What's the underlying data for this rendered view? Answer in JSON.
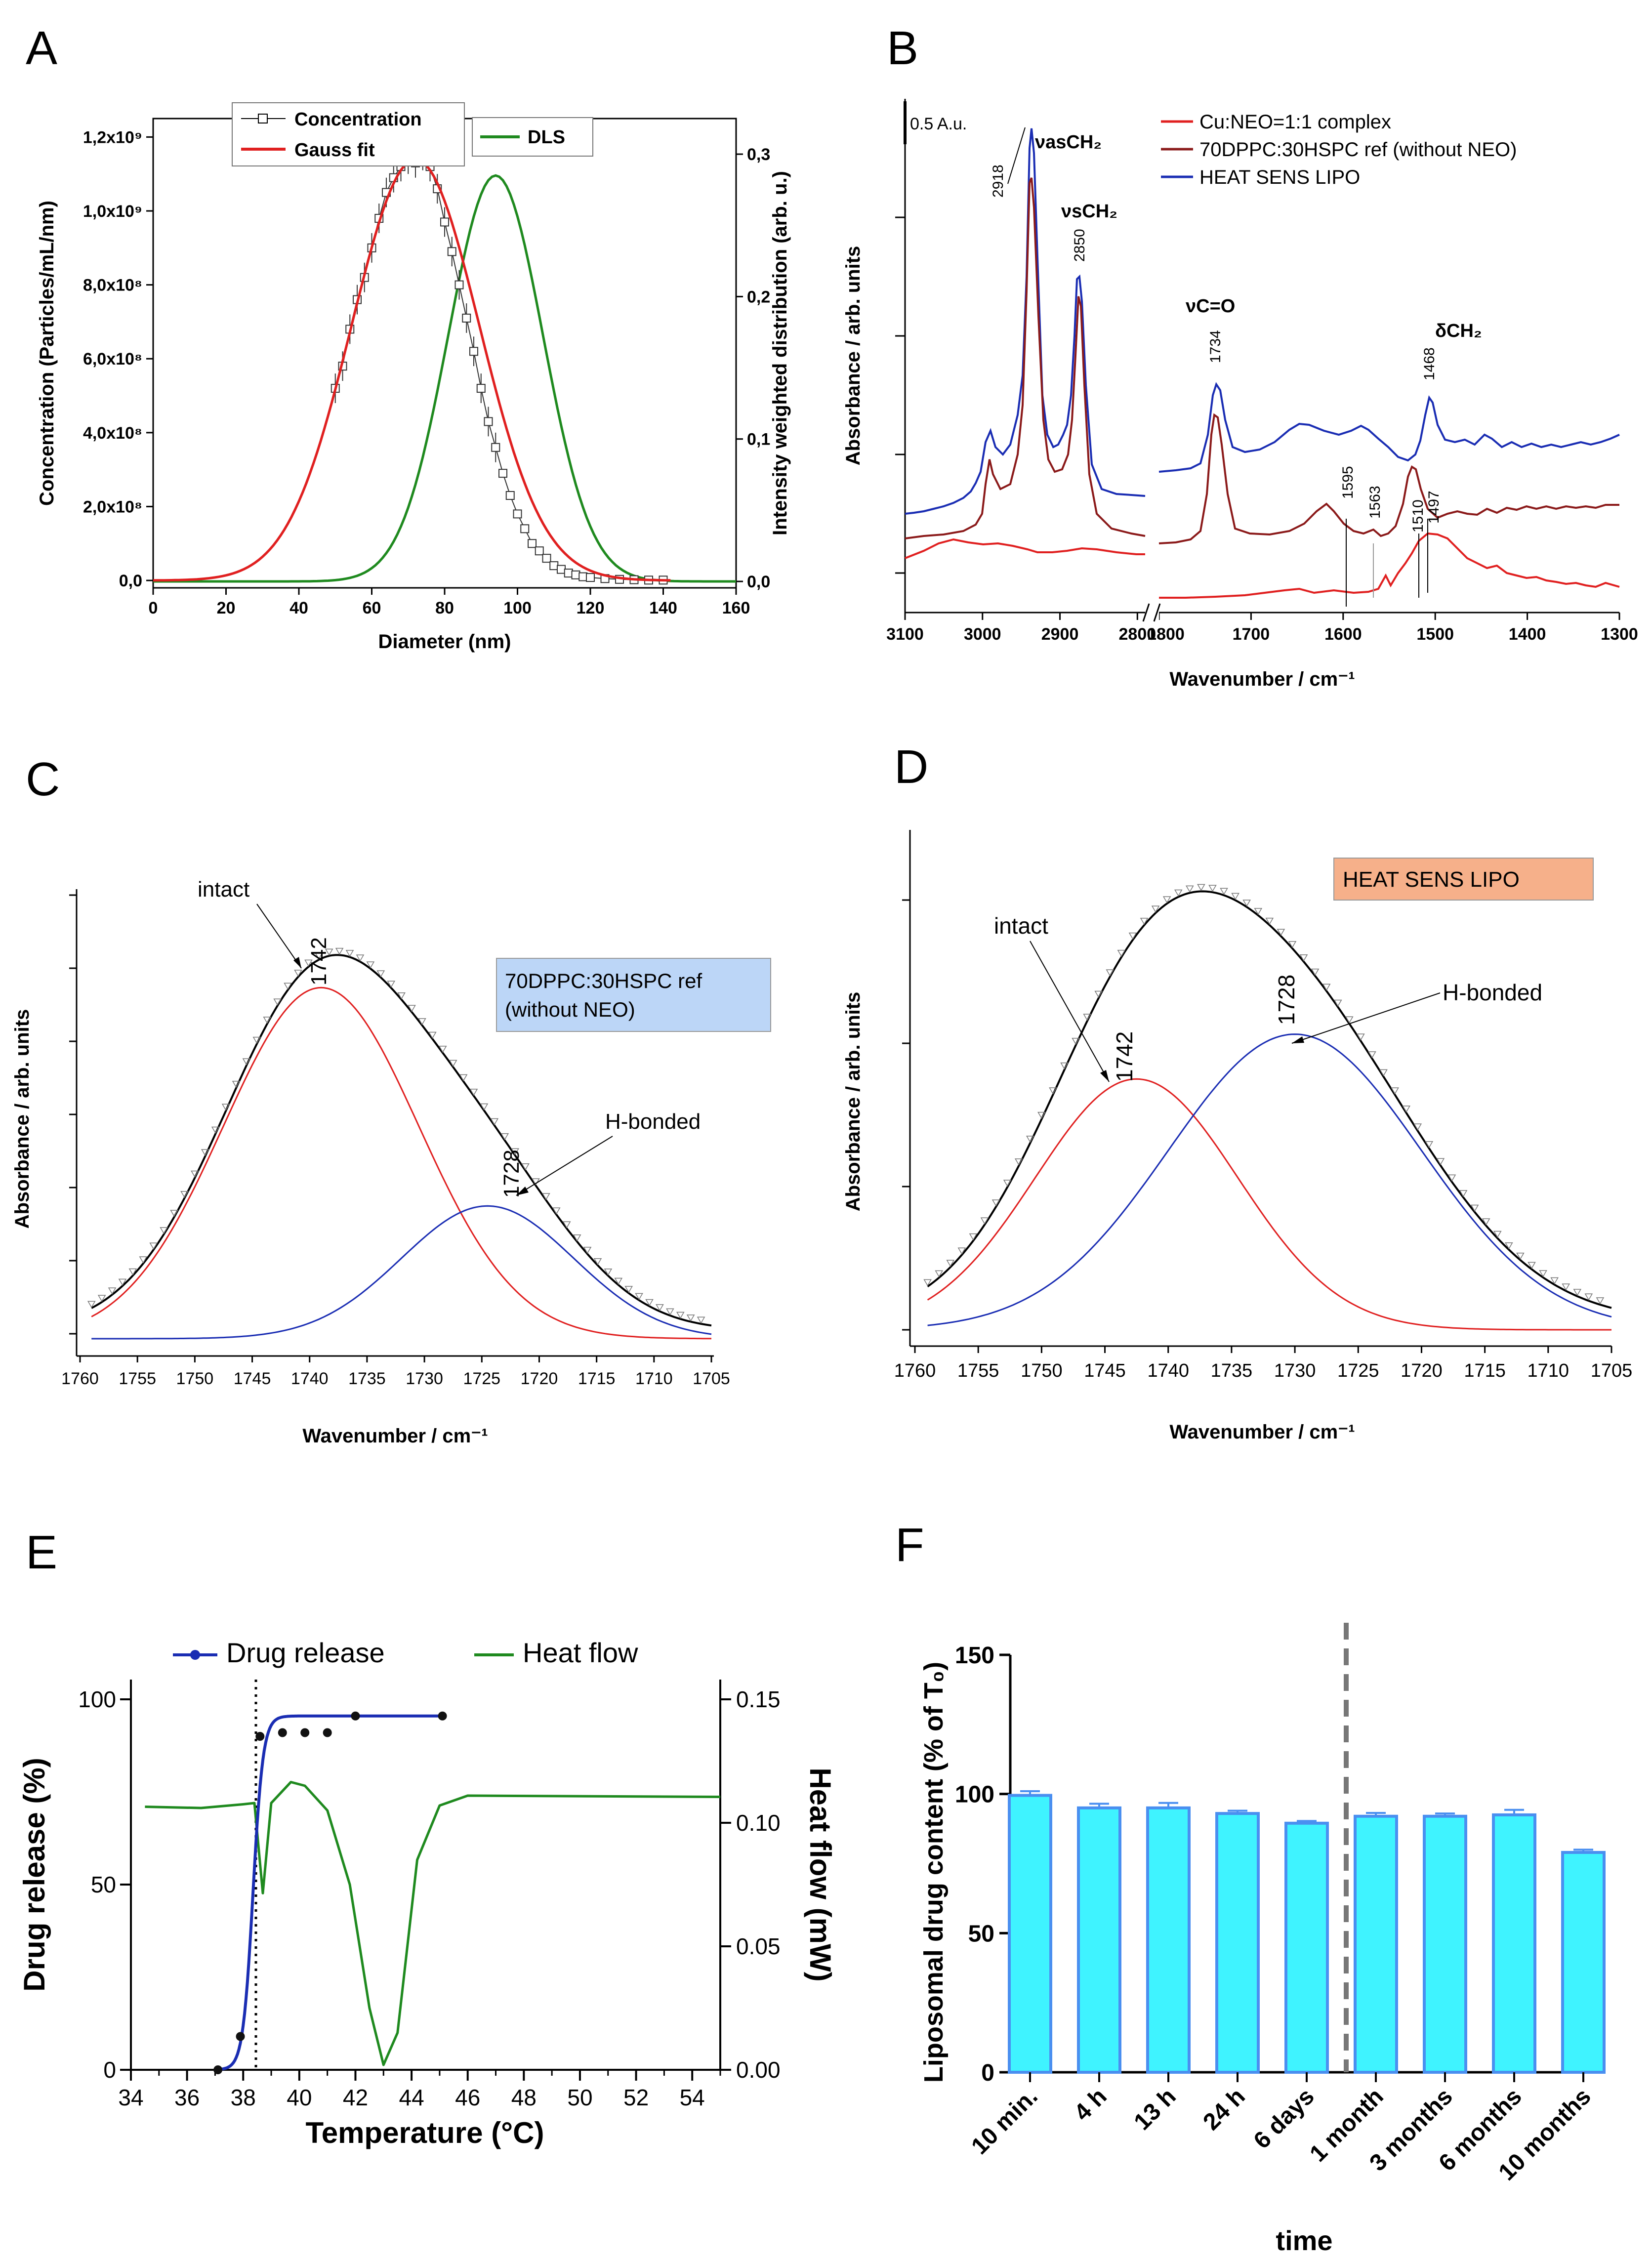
{
  "panels": {
    "A": {
      "label": "A",
      "xlabel": "Diameter (nm)",
      "ylabel": "Concentration (Particles/mL/nm)",
      "y2label": "Intensity weighted distribution (arb. u.)",
      "xticks": [
        "0",
        "20",
        "40",
        "60",
        "80",
        "100",
        "120",
        "140",
        "160"
      ],
      "yticks": [
        "0,0",
        "2,0x10⁸",
        "4,0x10⁸",
        "6,0x10⁸",
        "8,0x10⁸",
        "1,0x10⁹",
        "1,2x10⁹"
      ],
      "y2ticks": [
        "0,0",
        "0,1",
        "0,2",
        "0,3"
      ],
      "legend": {
        "concentration": "Concentration",
        "gauss": "Gauss fit",
        "dls": "DLS"
      }
    },
    "B": {
      "label": "B",
      "xlabel": "Wavenumber / cm⁻¹",
      "ylabel": "Absorbance / arb. units",
      "xticks_left": [
        "3100",
        "3000",
        "2900",
        "2800"
      ],
      "xticks_right": [
        "1800",
        "1700",
        "1600",
        "1500",
        "1400",
        "1300"
      ],
      "scale_label": "0.5 A.u.",
      "legend": {
        "cu": "Cu:NEO=1:1 complex",
        "ref": "70DPPC:30HSPC ref (without NEO)",
        "lipo": "HEAT SENS LIPO"
      },
      "peaks": [
        "2918",
        "2850",
        "1734",
        "1468",
        "1595",
        "1563",
        "1510",
        "1497"
      ],
      "band_labels": {
        "vas": "νasCH₂",
        "vs": "νsCH₂",
        "vco": "νC=O",
        "dch": "δCH₂"
      }
    },
    "C": {
      "label": "C",
      "xlabel": "Wavenumber / cm⁻¹",
      "ylabel": "Absorbance / arb. units",
      "xticks": [
        "1760",
        "1755",
        "1750",
        "1745",
        "1740",
        "1735",
        "1730",
        "1725",
        "1720",
        "1715",
        "1710",
        "1705"
      ],
      "box_line1": "70DPPC:30HSPC ref",
      "box_line2": "(without NEO)",
      "intact": "intact",
      "hbonded": "H-bonded",
      "peak1": "1742",
      "peak2": "1728"
    },
    "D": {
      "label": "D",
      "xlabel": "Wavenumber / cm⁻¹",
      "ylabel": "Absorbance / arb. units",
      "xticks": [
        "1760",
        "1755",
        "1750",
        "1745",
        "1740",
        "1735",
        "1730",
        "1725",
        "1720",
        "1715",
        "1710",
        "1705"
      ],
      "box": "HEAT SENS LIPO",
      "intact": "intact",
      "hbonded": "H-bonded",
      "peak1": "1742",
      "peak2": "1728"
    },
    "E": {
      "label": "E",
      "xlabel": "Temperature (°C)",
      "ylabel": "Drug release (%)",
      "y2label": "Heat flow (mW)",
      "xticks": [
        "34",
        "36",
        "38",
        "40",
        "42",
        "44",
        "46",
        "48",
        "50",
        "52",
        "54"
      ],
      "yticks": [
        "0",
        "50",
        "100"
      ],
      "y2ticks": [
        "0.00",
        "0.05",
        "0.10",
        "0.15"
      ],
      "legend": {
        "release": "Drug release",
        "heat": "Heat flow"
      }
    },
    "F": {
      "label": "F",
      "xlabel": "time",
      "ylabel": "Liposomal drug content (% of T₀)",
      "yticks": [
        "0",
        "50",
        "100",
        "150"
      ]
    }
  },
  "chart_data": [
    {
      "id": "A",
      "type": "line",
      "title": "",
      "xlabel": "Diameter (nm)",
      "ylabel": "Concentration (Particles/mL/nm)",
      "y2label": "Intensity weighted distribution (arb. u.)",
      "xlim": [
        0,
        160
      ],
      "ylim": [
        -20000000.0,
        1250000000.0
      ],
      "y2lim": [
        -0.0045,
        0.325
      ],
      "series": [
        {
          "name": "Concentration",
          "axis": "left",
          "marker": "square",
          "x": [
            50,
            52,
            54,
            56,
            58,
            60,
            62,
            64,
            66,
            68,
            70,
            72,
            74,
            76,
            78,
            80,
            82,
            84,
            86,
            88,
            90,
            92,
            94,
            96,
            98,
            100,
            102,
            104,
            106,
            108,
            110,
            112,
            114,
            116,
            118,
            120,
            124,
            128,
            132,
            136,
            140
          ],
          "y": [
            520000000.0,
            580000000.0,
            680000000.0,
            760000000.0,
            820000000.0,
            900000000.0,
            980000000.0,
            1050000000.0,
            1090000000.0,
            1120000000.0,
            1140000000.0,
            1130000000.0,
            1150000000.0,
            1120000000.0,
            1060000000.0,
            970000000.0,
            890000000.0,
            800000000.0,
            710000000.0,
            620000000.0,
            520000000.0,
            430000000.0,
            360000000.0,
            290000000.0,
            230000000.0,
            180000000.0,
            140000000.0,
            100000000.0,
            80000000.0,
            60000000.0,
            40000000.0,
            30000000.0,
            20000000.0,
            15000000.0,
            10000000.0,
            8000000.0,
            5000000.0,
            3000000.0,
            2000000.0,
            1000000.0,
            1000000.0
          ]
        },
        {
          "name": "Gauss fit",
          "axis": "left",
          "function": "gauss",
          "center": 72,
          "sigma": 17.5,
          "amplitude": 1140000000.0,
          "offset": 0
        },
        {
          "name": "DLS",
          "axis": "right",
          "function": "gauss",
          "center": 94,
          "sigma": 13,
          "amplitude": 0.285,
          "offset": 0
        }
      ]
    },
    {
      "id": "B",
      "type": "line",
      "xlabel": "Wavenumber / cm⁻¹",
      "ylabel": "Absorbance / arb. units",
      "x_segments": [
        [
          3100,
          2790
        ],
        [
          1800,
          1300
        ]
      ],
      "series": [
        {
          "name": "Cu:NEO=1:1 complex",
          "color": "#e02020"
        },
        {
          "name": "70DPPC:30HSPC ref (without NEO)",
          "color": "#8b1a1a"
        },
        {
          "name": "HEAT SENS LIPO",
          "color": "#1a2db3"
        }
      ],
      "peak_positions": [
        2918,
        2850,
        1734,
        1468,
        1595,
        1563,
        1510,
        1497
      ]
    },
    {
      "id": "C",
      "type": "line",
      "xlabel": "Wavenumber / cm⁻¹",
      "ylabel": "Absorbance / arb. units",
      "xlim": [
        1760,
        1705
      ],
      "ylim": [
        0,
        1.05
      ],
      "series": [
        {
          "name": "intact",
          "color": "#e02020",
          "center": 1739,
          "sigma": 8.5,
          "amplitude": 0.82
        },
        {
          "name": "H-bonded",
          "color": "#1a2db3",
          "center": 1724.5,
          "sigma": 7.5,
          "amplitude": 0.31
        },
        {
          "name": "fit",
          "color": "#000000",
          "sum": true
        },
        {
          "name": "data",
          "marker": "triangle",
          "sum": true
        }
      ]
    },
    {
      "id": "D",
      "type": "line",
      "xlabel": "Wavenumber / cm⁻¹",
      "ylabel": "Absorbance / arb. units",
      "xlim": [
        1760,
        1705
      ],
      "ylim": [
        0,
        1.05
      ],
      "series": [
        {
          "name": "intact",
          "color": "#e02020",
          "center": 1742.5,
          "sigma": 8.0,
          "amplitude": 0.56
        },
        {
          "name": "H-bonded",
          "color": "#1a2db3",
          "center": 1730,
          "sigma": 10.0,
          "amplitude": 0.66
        },
        {
          "name": "fit",
          "color": "#000000",
          "sum": true
        },
        {
          "name": "data",
          "marker": "triangle",
          "sum": true
        }
      ]
    },
    {
      "id": "E",
      "type": "line",
      "xlabel": "Temperature (°C)",
      "ylabel": "Drug release (%)",
      "y2label": "Heat flow (mW)",
      "xlim": [
        34,
        55
      ],
      "ylim": [
        0,
        100
      ],
      "y2lim": [
        0,
        0.15
      ],
      "series": [
        {
          "name": "Drug release",
          "axis": "left",
          "color": "#1a2db3",
          "x": [
            37.1,
            37.9,
            38.6,
            39.4,
            40.2,
            41.0,
            42.0,
            45.1
          ],
          "y": [
            0,
            9,
            90,
            91,
            91,
            91,
            95.5,
            95.5
          ]
        },
        {
          "name": "Heat flow",
          "axis": "right",
          "color": "#1f8a1f",
          "x": [
            34.5,
            36.5,
            38.0,
            38.4,
            38.7,
            39.0,
            39.7,
            40.2,
            41.0,
            41.8,
            42.5,
            43.0,
            43.5,
            44.2,
            45.0,
            46.0,
            55.0
          ],
          "y": [
            0.1065,
            0.106,
            0.1075,
            0.108,
            0.0715,
            0.108,
            0.1165,
            0.115,
            0.105,
            0.075,
            0.025,
            0.002,
            0.015,
            0.085,
            0.107,
            0.111,
            0.1105
          ]
        }
      ]
    },
    {
      "id": "F",
      "type": "bar",
      "xlabel": "time",
      "ylabel": "Liposomal drug content (% of T₀)",
      "ylim": [
        0,
        150
      ],
      "categories": [
        "10 min.",
        "4 h",
        "13 h",
        "24 h",
        "6 days",
        "1 month",
        "3 months",
        "6 months",
        "10 months"
      ],
      "values": [
        99.5,
        95,
        95,
        93,
        89.5,
        92,
        92,
        92.5,
        79
      ],
      "errors": [
        1.5,
        1.5,
        1.8,
        1.0,
        0.8,
        1.2,
        1.0,
        1.8,
        1.0
      ],
      "divider_after_index": 4
    }
  ],
  "colors": {
    "red": "#e02020",
    "darkred": "#8b1a1a",
    "blue": "#1a2db3",
    "green": "#1f8a1f",
    "cyan": "#3ff3ff",
    "barEdge": "#4a8ff0",
    "boxC": "#bcd6f7",
    "boxD": "#f6b08a"
  }
}
